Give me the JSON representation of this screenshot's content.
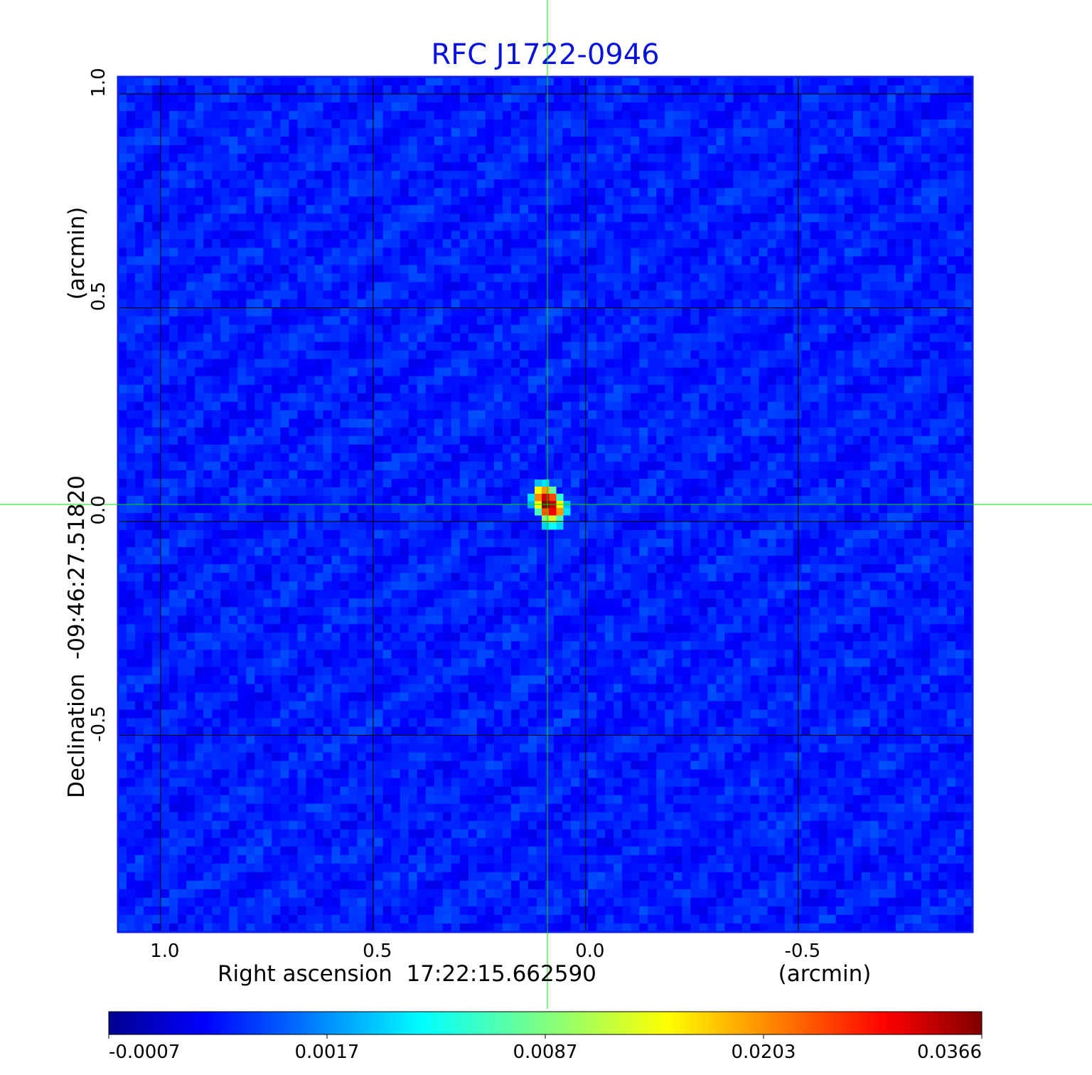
{
  "chart_data": {
    "type": "heatmap",
    "title": "RFC J1722-0946",
    "xlabel": "Right ascension  17:22:15.662590",
    "xunit": "(arcmin)",
    "ylabel": "Declination  -09:46:27.51820",
    "yunit": "(arcmin)",
    "x_ticks": [
      1.0,
      0.5,
      0.0,
      -0.5
    ],
    "x_tick_labels": [
      "1.0",
      "0.5",
      "0.0",
      "-0.5"
    ],
    "y_ticks": [
      1.0,
      0.5,
      0.0,
      -0.5
    ],
    "y_tick_labels": [
      "1.0",
      "0.5",
      "0.0",
      "-0.5"
    ],
    "xlim": [
      1.1,
      -0.91
    ],
    "ylim": [
      -0.96,
      1.04
    ],
    "x_reversed": true,
    "grid": true,
    "crosshair": {
      "x": 0.09,
      "y": 0.04,
      "color": "#00e000"
    },
    "colormap": "jet",
    "colorbar": {
      "location": "bottom",
      "tick_labels": [
        "-0.0007",
        "0.0017",
        "0.0087",
        "0.0203",
        "0.0366"
      ]
    },
    "value_range": [
      -0.0007,
      0.0366
    ],
    "source": {
      "x": 0.09,
      "y": 0.04,
      "peak_value": 0.0366,
      "pixels": [
        {
          "dx": 0,
          "dy": 0,
          "value": 0.0366
        },
        {
          "dx": 1,
          "dy": 0,
          "value": 0.033
        },
        {
          "dx": 0,
          "dy": 1,
          "value": 0.032
        },
        {
          "dx": 1,
          "dy": -1,
          "value": 0.03
        },
        {
          "dx": 1,
          "dy": 1,
          "value": 0.025
        },
        {
          "dx": -1,
          "dy": 1,
          "value": 0.021
        },
        {
          "dx": -1,
          "dy": 2,
          "value": 0.015
        },
        {
          "dx": 0,
          "dy": 2,
          "value": 0.02
        },
        {
          "dx": 0,
          "dy": -1,
          "value": 0.024
        },
        {
          "dx": 2,
          "dy": -1,
          "value": 0.02
        },
        {
          "dx": 1,
          "dy": -2,
          "value": 0.013
        },
        {
          "dx": 2,
          "dy": 0,
          "value": 0.015
        },
        {
          "dx": -1,
          "dy": 0,
          "value": 0.015
        },
        {
          "dx": 0,
          "dy": -2,
          "value": 0.009
        },
        {
          "dx": 2,
          "dy": -2,
          "value": 0.007
        },
        {
          "dx": 2,
          "dy": 1,
          "value": 0.006
        },
        {
          "dx": -1,
          "dy": -1,
          "value": 0.007
        },
        {
          "dx": 1,
          "dy": 2,
          "value": 0.008
        },
        {
          "dx": 3,
          "dy": -1,
          "value": 0.004
        },
        {
          "dx": -2,
          "dy": 1,
          "value": 0.004
        },
        {
          "dx": 1,
          "dy": -3,
          "value": 0.005
        },
        {
          "dx": 0,
          "dy": 3,
          "value": 0.004
        },
        {
          "dx": 0,
          "dy": -3,
          "value": 0.0035
        },
        {
          "dx": -1,
          "dy": 3,
          "value": 0.003
        },
        {
          "dx": -2,
          "dy": 0,
          "value": 0.0025
        },
        {
          "dx": 3,
          "dy": 0,
          "value": 0.003
        },
        {
          "dx": 2,
          "dy": -3,
          "value": 0.0035
        }
      ]
    },
    "background_noise_level": 0.0005
  }
}
